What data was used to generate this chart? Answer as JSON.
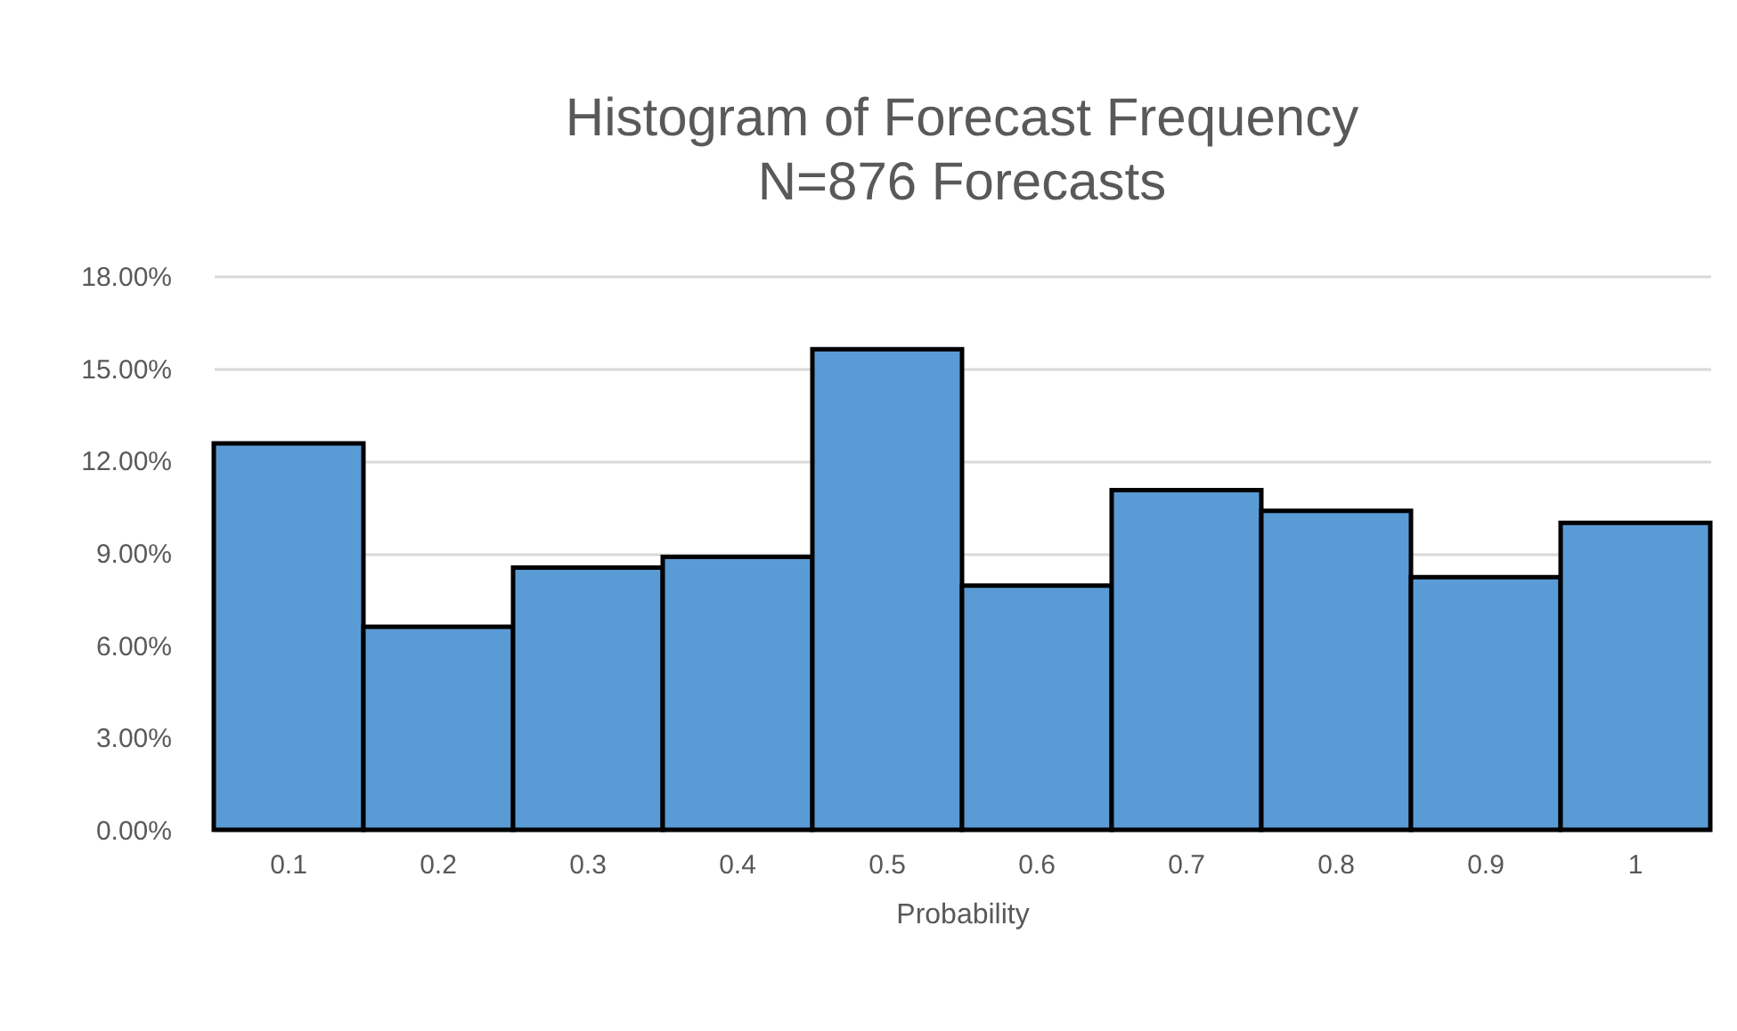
{
  "chart_data": {
    "type": "bar",
    "title": "Histogram of Forecast Frequency",
    "subtitle": "N=876 Forecasts",
    "xlabel": "Probability",
    "categories": [
      "0.1",
      "0.2",
      "0.3",
      "0.4",
      "0.5",
      "0.6",
      "0.7",
      "0.8",
      "0.9",
      "1"
    ],
    "values": [
      12.56,
      6.6,
      8.52,
      8.87,
      15.62,
      7.94,
      11.04,
      10.37,
      8.21,
      9.98
    ],
    "color": "#5b9bd5",
    "ylim": [
      0,
      18
    ],
    "yticks": [
      {
        "value": 0,
        "label": "0.00%"
      },
      {
        "value": 3,
        "label": "3.00%"
      },
      {
        "value": 6,
        "label": "6.00%"
      },
      {
        "value": 9,
        "label": "9.00%"
      },
      {
        "value": 12,
        "label": "12.00%"
      },
      {
        "value": 15,
        "label": "15.00%"
      },
      {
        "value": 18,
        "label": "18.00%"
      }
    ],
    "grid": "y"
  }
}
